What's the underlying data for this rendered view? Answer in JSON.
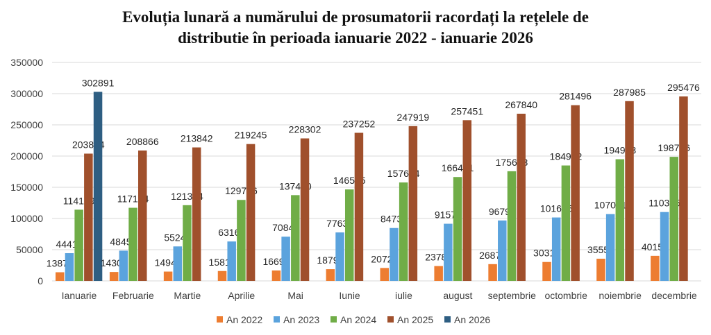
{
  "chart_data": {
    "type": "bar",
    "title_line1": "Evoluția lunară a numărului de prosumatorii  racordați la rețelele de",
    "title_line2": "distributie în perioada ianuarie 2022 - ianuarie 2026",
    "categories": [
      "Ianuarie",
      "Februarie",
      "Martie",
      "Aprilie",
      "Mai",
      "Iunie",
      "iulie",
      "august",
      "septembrie",
      "octombrie",
      "noiembrie",
      "decembrie"
    ],
    "ylim": [
      0,
      350000
    ],
    "yticks": [
      0,
      50000,
      100000,
      150000,
      200000,
      250000,
      300000,
      350000
    ],
    "grid": true,
    "legend_position": "bottom",
    "series": [
      {
        "name": "An 2022",
        "color": "#ED7D31",
        "values": [
          13874,
          14305,
          14948,
          15819,
          16696,
          18792,
          20720,
          23785,
          26877,
          30318,
          35552,
          40159
        ]
      },
      {
        "name": "An 2023",
        "color": "#5BA3DD",
        "values": [
          44415,
          48453,
          55244,
          63162,
          70840,
          77638,
          84733,
          91572,
          96792,
          101605,
          107001,
          110335
        ]
      },
      {
        "name": "An 2024",
        "color": "#70AD47",
        "values": [
          114109,
          117154,
          121304,
          129736,
          137400,
          146535,
          157694,
          166431,
          175663,
          184932,
          194903,
          198756
        ]
      },
      {
        "name": "An 2025",
        "color": "#A0502C",
        "values": [
          203894,
          208866,
          213842,
          219245,
          228302,
          237252,
          247919,
          257451,
          267840,
          281496,
          287985,
          295476
        ]
      },
      {
        "name": "An 2026",
        "color": "#2E5E82",
        "values": [
          302891,
          null,
          null,
          null,
          null,
          null,
          null,
          null,
          null,
          null,
          null,
          null
        ]
      }
    ]
  }
}
